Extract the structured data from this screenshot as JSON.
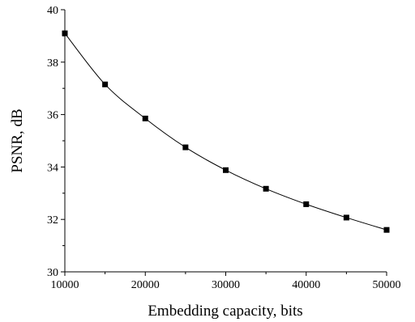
{
  "chart_data": {
    "type": "line",
    "title": "",
    "xlabel": "Embedding capacity, bits",
    "ylabel": "PSNR, dB",
    "xlim": [
      10000,
      50000
    ],
    "ylim": [
      30,
      40
    ],
    "xticks": [
      10000,
      20000,
      30000,
      40000,
      50000
    ],
    "yticks": [
      30,
      32,
      34,
      36,
      38,
      40
    ],
    "grid": false,
    "legend": "none",
    "marker": "square",
    "series": [
      {
        "x": [
          10000,
          15000,
          20000,
          25000,
          30000,
          35000,
          40000,
          45000,
          50000
        ],
        "y": [
          39.1,
          37.15,
          35.85,
          34.75,
          33.88,
          33.17,
          32.58,
          32.07,
          31.6
        ]
      }
    ],
    "colors": {
      "line": "#000000",
      "marker": "#000000",
      "axis": "#000000"
    }
  }
}
